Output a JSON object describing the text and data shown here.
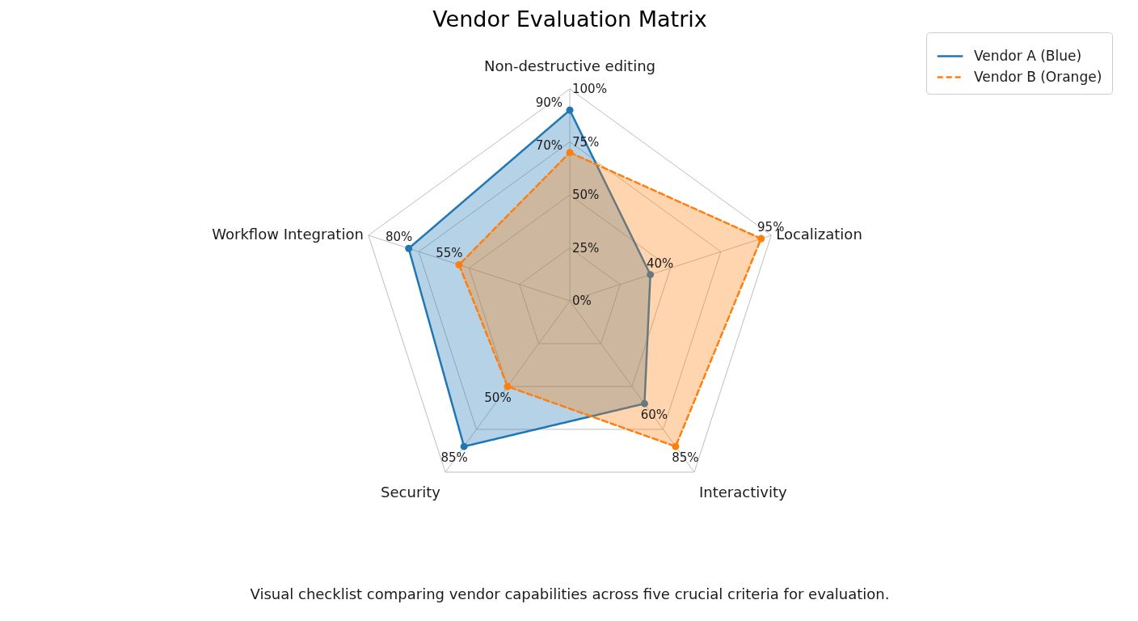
{
  "chart_data": {
    "type": "radar",
    "title": "Vendor Evaluation Matrix",
    "categories": [
      "Non-destructive editing",
      "Localization",
      "Interactivity",
      "Security",
      "Workflow Integration"
    ],
    "series": [
      {
        "name": "Vendor A (Blue)",
        "color": "#1f77b4",
        "line_style": "solid",
        "values": [
          90,
          40,
          60,
          85,
          80
        ],
        "value_labels": [
          "90%",
          "40%",
          "60%",
          "85%",
          "80%"
        ]
      },
      {
        "name": "Vendor B (Orange)",
        "color": "#ff7f0e",
        "line_style": "dashed",
        "values": [
          70,
          95,
          85,
          50,
          55
        ],
        "value_labels": [
          "70%",
          "95%",
          "85%",
          "50%",
          "55%"
        ]
      }
    ],
    "ylim": [
      0,
      100
    ],
    "yticks": [
      {
        "value": 0,
        "label": "0%"
      },
      {
        "value": 25,
        "label": "25%"
      },
      {
        "value": 50,
        "label": "50%"
      },
      {
        "value": 75,
        "label": "75%"
      },
      {
        "value": 100,
        "label": "100%"
      }
    ],
    "grid": true,
    "legend": "top right",
    "marker": "circle",
    "annotations": [
      "Visual checklist comparing vendor capabilities across five crucial criteria for evaluation."
    ]
  }
}
